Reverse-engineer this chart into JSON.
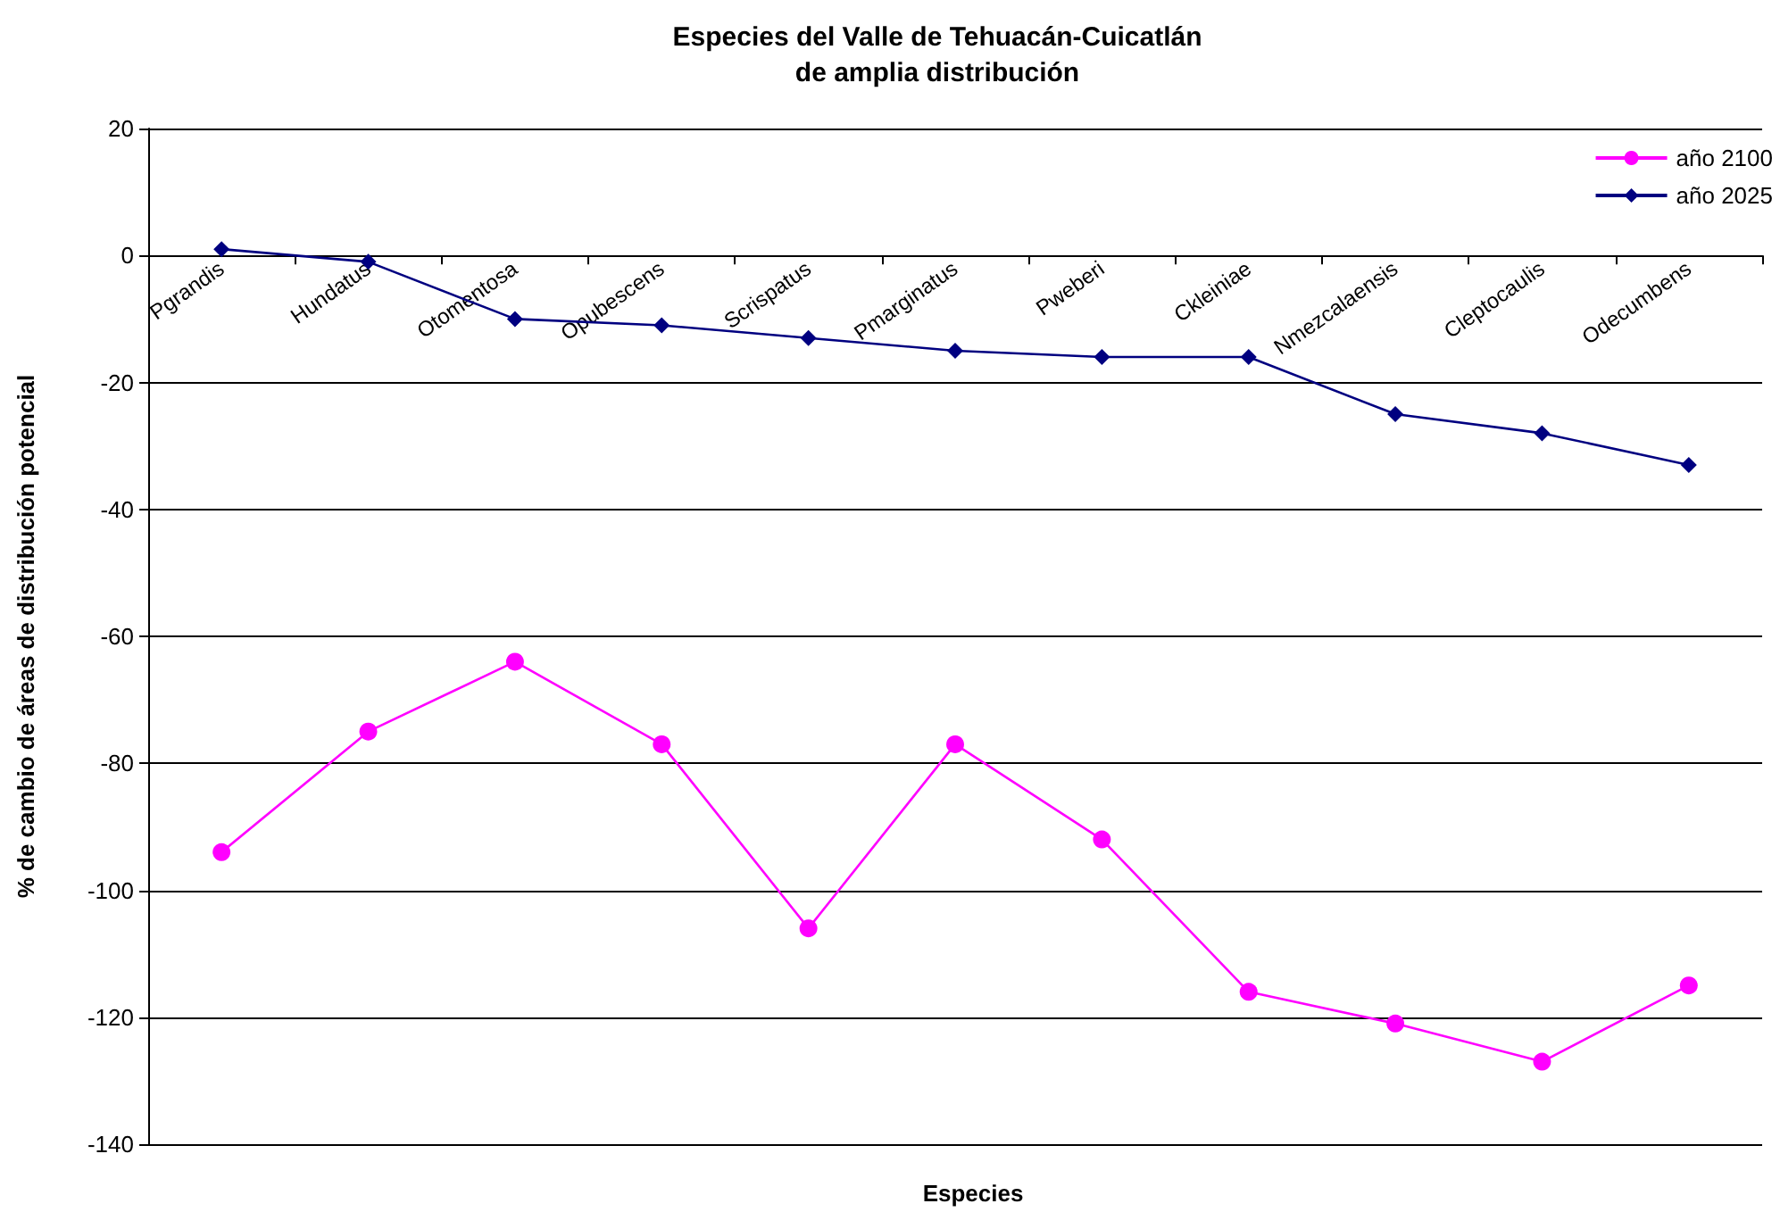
{
  "chart_data": {
    "type": "line",
    "title": "Especies del Valle de Tehuacán-Cuicatlán\nde amplia distribución",
    "xlabel": "Especies",
    "ylabel": "% de cambio de áreas de distribución potencial",
    "categories": [
      "Pgrandis",
      "Hundatus",
      "Otomentosa",
      "Opubescens",
      "Scrispatus",
      "Pmarginatus",
      "Pweberi",
      "Ckleiniae",
      "Nmezcalaensis",
      "Cleptocaulis",
      "Odecumbens"
    ],
    "series": [
      {
        "name": "año 2100",
        "color": "#ff00ff",
        "marker": "circle",
        "values": [
          -94,
          -75,
          -64,
          -77,
          -106,
          -77,
          -92,
          -116,
          -121,
          -127,
          -115
        ]
      },
      {
        "name": "año 2025",
        "color": "#000080",
        "marker": "diamond",
        "values": [
          1,
          -1,
          -10,
          -11,
          -13,
          -15,
          -16,
          -16,
          -25,
          -28,
          -33
        ]
      }
    ],
    "ylim": [
      -140,
      20
    ],
    "yticks": [
      -140,
      -120,
      -100,
      -80,
      -60,
      -40,
      -20,
      0,
      20
    ],
    "grid": "y",
    "legend": "top right"
  }
}
